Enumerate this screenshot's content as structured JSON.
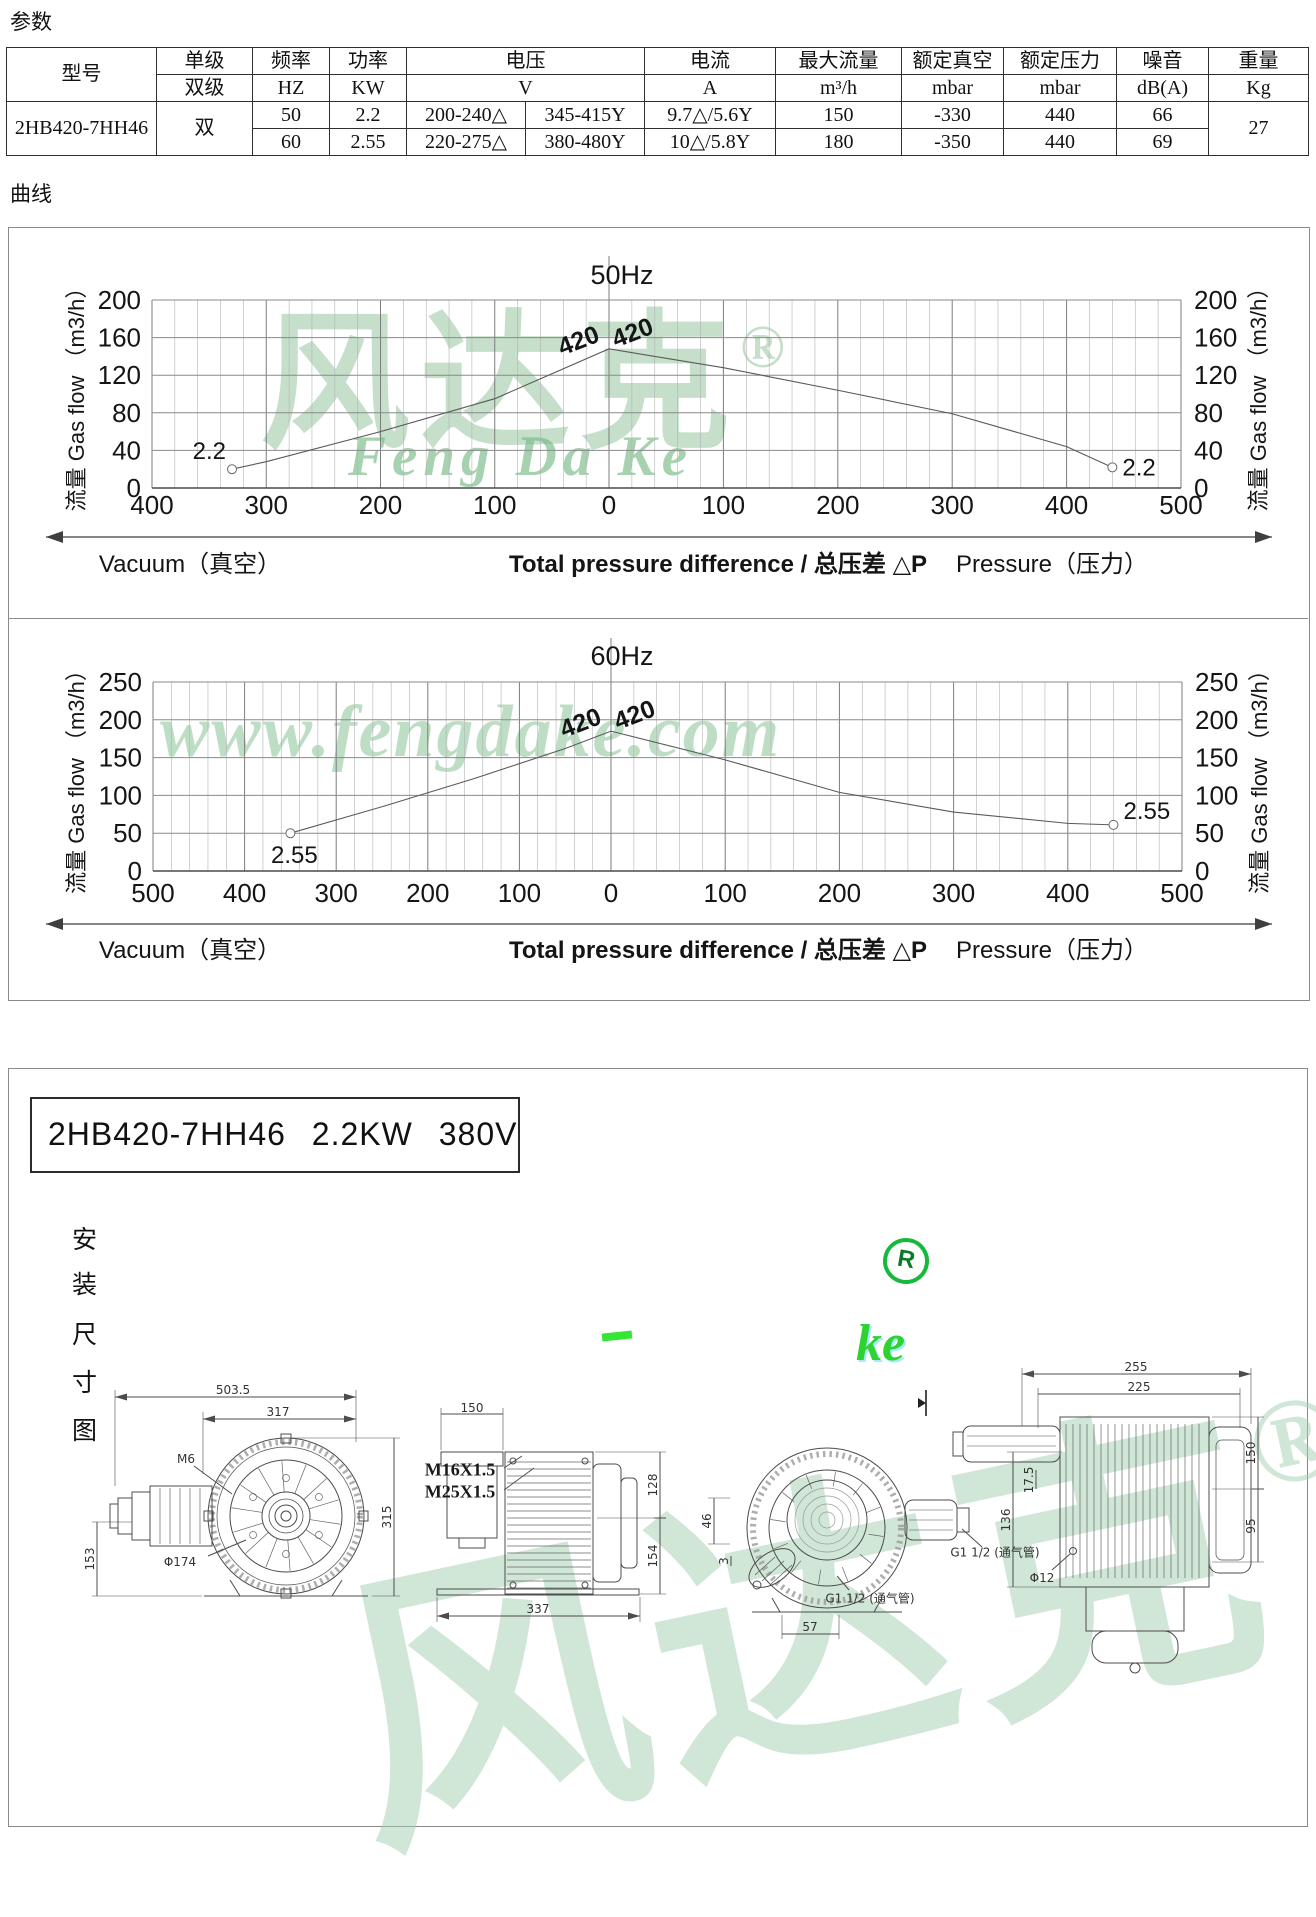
{
  "page": {
    "section_params": "参数",
    "section_curves": "曲线"
  },
  "table": {
    "headers": {
      "model": "型号",
      "stage_top": "单级",
      "stage_bottom": "双级",
      "freq_top": "频率",
      "freq_unit": "HZ",
      "power_top": "功率",
      "power_unit": "KW",
      "voltage_top": "电压",
      "voltage_unit": "V",
      "current_top": "电流",
      "current_unit": "A",
      "flow_top": "最大流量",
      "flow_unit": "m³/h",
      "vacuum_top": "额定真空",
      "vacuum_unit": "mbar",
      "pressure_top": "额定压力",
      "pressure_unit": "mbar",
      "noise_top": "噪音",
      "noise_unit": "dB(A)",
      "weight_top": "重量",
      "weight_unit": "Kg"
    },
    "model": "2HB420-7HH46",
    "stage": "双",
    "weight": "27",
    "rows": [
      {
        "hz": "50",
        "kw": "2.2",
        "v1": "200-240△",
        "v2": "345-415Y",
        "a": "9.7△/5.6Y",
        "flow": "150",
        "vac": "-330",
        "pres": "440",
        "noise": "66"
      },
      {
        "hz": "60",
        "kw": "2.55",
        "v1": "220-275△",
        "v2": "380-480Y",
        "a": "10△/5.8Y",
        "flow": "180",
        "vac": "-350",
        "pres": "440",
        "noise": "69"
      }
    ]
  },
  "chart_data": [
    {
      "type": "line",
      "title": "50Hz",
      "y_axis_label": "流量 Gas flow （m3/h）",
      "x_axis_left_label": "Vacuum（真空）",
      "x_axis_center_label": "Total pressure difference / 总压差  △P",
      "x_axis_right_label": "Pressure（压力）",
      "ylim": [
        0,
        200
      ],
      "ytick_step": 40,
      "x_vacuum_max": 400,
      "x_pressure_max": 500,
      "xtick_step": 100,
      "minor_step": 20,
      "grid": true,
      "series": [
        {
          "name": "420",
          "points": [
            [
              -330,
              20
            ],
            [
              -300,
              28
            ],
            [
              -200,
              60
            ],
            [
              -100,
              95
            ],
            [
              0,
              148
            ],
            [
              100,
              128
            ],
            [
              200,
              104
            ],
            [
              300,
              79
            ],
            [
              400,
              44
            ],
            [
              440,
              22
            ]
          ]
        }
      ],
      "endpoint_labels": [
        {
          "text": "2.2",
          "x": -330,
          "y": 20
        },
        {
          "text": "2.2",
          "x": 440,
          "y": 22
        }
      ],
      "peak_labels": [
        "420",
        "420"
      ]
    },
    {
      "type": "line",
      "title": "60Hz",
      "y_axis_label": "流量 Gas flow （m3/h）",
      "x_axis_left_label": "Vacuum（真空）",
      "x_axis_center_label": "Total pressure difference / 总压差  △P",
      "x_axis_right_label": "Pressure（压力）",
      "ylim": [
        0,
        250
      ],
      "ytick_step": 50,
      "x_vacuum_max": 500,
      "x_pressure_max": 500,
      "xtick_step": 100,
      "minor_step": 20,
      "grid": true,
      "series": [
        {
          "name": "420",
          "points": [
            [
              -350,
              50
            ],
            [
              -250,
              85
            ],
            [
              -150,
              122
            ],
            [
              -50,
              162
            ],
            [
              0,
              185
            ],
            [
              100,
              147
            ],
            [
              200,
              104
            ],
            [
              300,
              78
            ],
            [
              400,
              63
            ],
            [
              440,
              61
            ]
          ]
        }
      ],
      "endpoint_labels": [
        {
          "text": "2.55",
          "x": -350,
          "y": 50
        },
        {
          "text": "2.55",
          "x": 440,
          "y": 61
        }
      ],
      "peak_labels": [
        "420",
        "420"
      ]
    }
  ],
  "installation": {
    "title": "2HB420-7HH46  2.2KW  380V",
    "side_label_chars": [
      "安",
      "装",
      "尺",
      "寸",
      "图"
    ],
    "views": [
      {
        "name": "front-view-with-motor",
        "labels": [
          "503.5",
          "317",
          "M6",
          "Φ174",
          "153",
          "315"
        ]
      },
      {
        "name": "side-view-left",
        "labels": [
          "M16X1.5",
          "M25X1.5",
          "150",
          "128",
          "154",
          "337"
        ]
      },
      {
        "name": "front-view-inlet",
        "labels": [
          "46",
          "3",
          "57",
          "G1 1/2 (通气管)",
          "G1 1/2 (通气管)"
        ]
      },
      {
        "name": "side-view-right",
        "labels": [
          "255",
          "225",
          "150",
          "95",
          "136",
          "17.5",
          "Φ12"
        ]
      }
    ]
  },
  "watermarks": {
    "brand_cn": "风达克",
    "reg": "®",
    "r": "R",
    "brand_en": "Feng Da Ke",
    "site": "www.fengdake.com",
    "ke": "ke"
  }
}
